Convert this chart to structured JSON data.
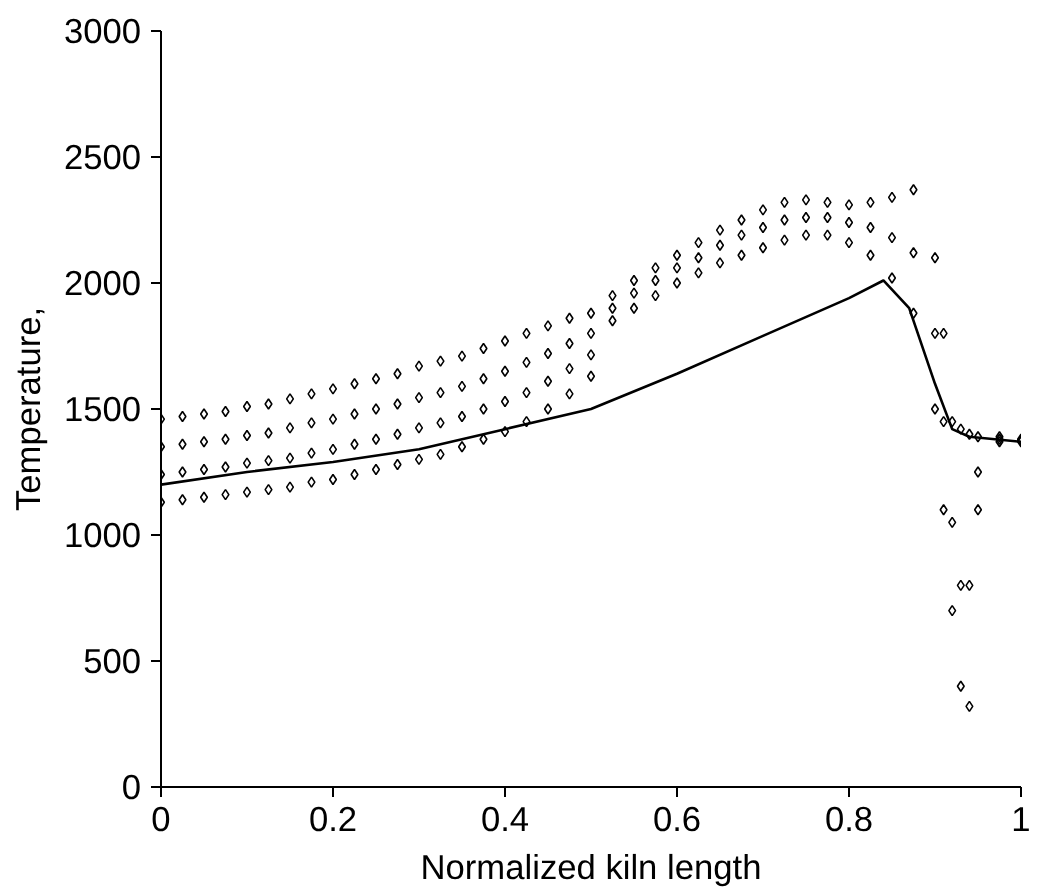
{
  "chart_data": {
    "type": "scatter",
    "xlabel": "Normalized kiln length",
    "ylabel": "Temperature,",
    "xlim": [
      0,
      1
    ],
    "ylim": [
      0,
      3000
    ],
    "xticks": [
      0,
      0.2,
      0.4,
      0.6,
      0.8,
      1
    ],
    "yticks": [
      0,
      500,
      1000,
      1500,
      2000,
      2500,
      3000
    ],
    "grid": false,
    "series": [
      {
        "color": "#000000",
        "marker": "diamond",
        "x": [
          0,
          0,
          0,
          0,
          0.025,
          0.025,
          0.025,
          0.025,
          0.05,
          0.05,
          0.05,
          0.05,
          0.075,
          0.075,
          0.075,
          0.075,
          0.1,
          0.1,
          0.1,
          0.1,
          0.125,
          0.125,
          0.125,
          0.125,
          0.15,
          0.15,
          0.15,
          0.15,
          0.175,
          0.175,
          0.175,
          0.175,
          0.2,
          0.2,
          0.2,
          0.2,
          0.225,
          0.225,
          0.225,
          0.225,
          0.25,
          0.25,
          0.25,
          0.25,
          0.275,
          0.275,
          0.275,
          0.275,
          0.3,
          0.3,
          0.3,
          0.3,
          0.325,
          0.325,
          0.325,
          0.325,
          0.35,
          0.35,
          0.35,
          0.35,
          0.375,
          0.375,
          0.375,
          0.375,
          0.4,
          0.4,
          0.4,
          0.4,
          0.425,
          0.425,
          0.425,
          0.425,
          0.45,
          0.45,
          0.45,
          0.45,
          0.475,
          0.475,
          0.475,
          0.475,
          0.5,
          0.5,
          0.5,
          0.5,
          0.525,
          0.525,
          0.525,
          0.55,
          0.55,
          0.55,
          0.575,
          0.575,
          0.575,
          0.6,
          0.6,
          0.6,
          0.625,
          0.625,
          0.625,
          0.65,
          0.65,
          0.65,
          0.675,
          0.675,
          0.675,
          0.7,
          0.7,
          0.7,
          0.725,
          0.725,
          0.725,
          0.75,
          0.75,
          0.75,
          0.775,
          0.775,
          0.775,
          0.8,
          0.8,
          0.8,
          0.825,
          0.825,
          0.825,
          0.85,
          0.85,
          0.85,
          0.875,
          0.875,
          0.875,
          0.9,
          0.9,
          0.9,
          0.91,
          0.91,
          0.91,
          0.92,
          0.92,
          0.92,
          0.93,
          0.93,
          0.93,
          0.94,
          0.94,
          0.94,
          0.95,
          0.95,
          0.95,
          0.975,
          0.975,
          0.975,
          1,
          1,
          1
        ],
        "values": [
          1130,
          1240,
          1350,
          1460,
          1140,
          1250,
          1360,
          1470,
          1150,
          1260,
          1370,
          1480,
          1160,
          1270,
          1380,
          1490,
          1170,
          1285,
          1395,
          1510,
          1180,
          1295,
          1405,
          1520,
          1190,
          1305,
          1425,
          1540,
          1210,
          1325,
          1445,
          1560,
          1220,
          1340,
          1460,
          1580,
          1240,
          1360,
          1480,
          1600,
          1260,
          1380,
          1500,
          1620,
          1280,
          1400,
          1520,
          1640,
          1300,
          1425,
          1545,
          1670,
          1320,
          1445,
          1565,
          1690,
          1350,
          1470,
          1590,
          1710,
          1380,
          1500,
          1620,
          1740,
          1410,
          1530,
          1650,
          1770,
          1450,
          1565,
          1685,
          1800,
          1500,
          1610,
          1720,
          1830,
          1560,
          1660,
          1760,
          1860,
          1630,
          1715,
          1800,
          1880,
          1850,
          1900,
          1950,
          1900,
          1960,
          2010,
          1950,
          2010,
          2060,
          2000,
          2060,
          2110,
          2040,
          2100,
          2160,
          2080,
          2150,
          2210,
          2110,
          2190,
          2250,
          2140,
          2220,
          2290,
          2170,
          2250,
          2320,
          2190,
          2260,
          2330,
          2190,
          2260,
          2320,
          2160,
          2240,
          2310,
          2110,
          2220,
          2320,
          2020,
          2180,
          2340,
          1880,
          2120,
          2370,
          1500,
          1800,
          2100,
          1100,
          1450,
          1800,
          700,
          1050,
          1450,
          400,
          800,
          1420,
          320,
          800,
          1400,
          1100,
          1250,
          1390,
          1370,
          1380,
          1390,
          1370,
          1375,
          1380
        ]
      },
      {
        "type": "line",
        "color": "#000000",
        "line_style": "solid",
        "x": [
          0,
          0.1,
          0.2,
          0.3,
          0.4,
          0.5,
          0.6,
          0.7,
          0.8,
          0.84,
          0.87,
          0.9,
          0.92,
          0.94,
          1
        ],
        "values": [
          1200,
          1250,
          1290,
          1340,
          1420,
          1500,
          1640,
          1790,
          1940,
          2010,
          1900,
          1600,
          1420,
          1390,
          1370
        ]
      }
    ]
  }
}
